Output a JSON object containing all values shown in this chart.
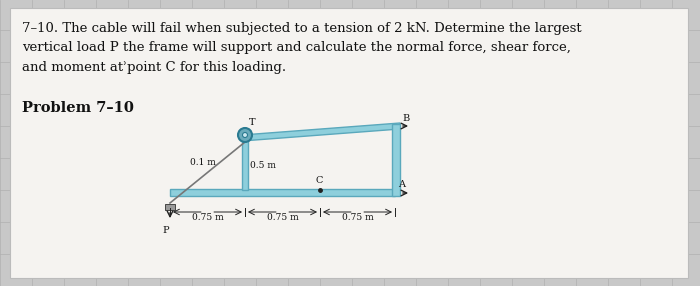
{
  "bg_color": "#c8c8c8",
  "panel_color": "#f5f3f0",
  "panel_edge_color": "#bbbbbb",
  "text_color": "#111111",
  "title_text": "7–10. The cable will fail when subjected to a tension of 2 kN. Determine the largest\nvertical load P the frame will support and calculate the normal force, shear force,\nand moment atʾpoint C for this loading.",
  "problem_label": "Problem 7–10",
  "frame_color": "#8ecfdc",
  "frame_edge_color": "#5aa8bc",
  "grid_color": "#b0b0b0",
  "dim_color": "#222222",
  "label_T": "T",
  "label_B": "B",
  "label_C": "C",
  "label_A": "A",
  "label_P": "P",
  "label_01": "0.1 m",
  "label_05": "0.5 m",
  "label_075a": "0.75 m",
  "label_075b": "0.75 m",
  "label_075c": "0.75 m",
  "cable_color": "#777777",
  "pulley_outer_color": "#6aaabb",
  "pulley_inner_color": "#ddeeff",
  "pin_color": "#aaaaaa",
  "support_color": "#555555"
}
